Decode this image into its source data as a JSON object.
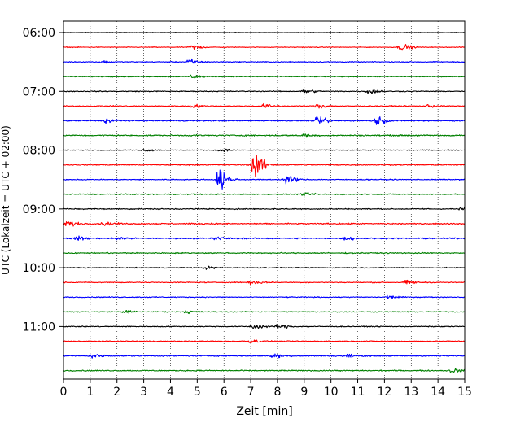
{
  "chart_data": {
    "type": "line",
    "title": "",
    "xlabel": "Zeit  [min]",
    "ylabel": "UTC (Lokalzeit = UTC + 02:00)",
    "xlim": [
      0,
      15
    ],
    "x_ticks": [
      "0",
      "1",
      "2",
      "3",
      "4",
      "5",
      "6",
      "7",
      "8",
      "9",
      "10",
      "11",
      "12",
      "13",
      "14",
      "15"
    ],
    "y_tick_labels": [
      "06:00",
      "07:00",
      "08:00",
      "09:00",
      "10:00",
      "11:00"
    ],
    "y_tick_trace_index": [
      0,
      4,
      8,
      12,
      16,
      20
    ],
    "grid": "vertical dotted",
    "trace_interval_min": 15,
    "colors": [
      "#000000",
      "#ff0000",
      "#0000ff",
      "#008000"
    ],
    "traces": [
      {
        "start": "06:00",
        "color": "#000000",
        "amplitude": 0.06,
        "events": []
      },
      {
        "start": "06:15",
        "color": "#ff0000",
        "amplitude": 0.08,
        "events": [
          {
            "t": 4.8,
            "a": 0.5
          },
          {
            "t": 12.6,
            "a": 0.7
          }
        ]
      },
      {
        "start": "06:30",
        "color": "#0000ff",
        "amplitude": 0.1,
        "events": [
          {
            "t": 1.3,
            "a": 0.35
          },
          {
            "t": 4.7,
            "a": 0.6
          }
        ]
      },
      {
        "start": "06:45",
        "color": "#008000",
        "amplitude": 0.1,
        "events": [
          {
            "t": 4.8,
            "a": 0.45
          }
        ]
      },
      {
        "start": "07:00",
        "color": "#000000",
        "amplitude": 0.1,
        "events": [
          {
            "t": 9.0,
            "a": 0.4
          },
          {
            "t": 11.4,
            "a": 0.55
          }
        ]
      },
      {
        "start": "07:15",
        "color": "#ff0000",
        "amplitude": 0.1,
        "events": [
          {
            "t": 4.8,
            "a": 0.35
          },
          {
            "t": 7.5,
            "a": 0.45
          },
          {
            "t": 9.5,
            "a": 0.55
          },
          {
            "t": 13.6,
            "a": 0.3
          }
        ]
      },
      {
        "start": "07:30",
        "color": "#0000ff",
        "amplitude": 0.12,
        "events": [
          {
            "t": 1.6,
            "a": 0.5
          },
          {
            "t": 9.5,
            "a": 0.9
          },
          {
            "t": 11.7,
            "a": 0.85
          }
        ]
      },
      {
        "start": "07:45",
        "color": "#008000",
        "amplitude": 0.14,
        "events": [
          {
            "t": 9.0,
            "a": 0.3
          }
        ]
      },
      {
        "start": "08:00",
        "color": "#000000",
        "amplitude": 0.08,
        "events": [
          {
            "t": 3.0,
            "a": 0.3
          },
          {
            "t": 5.8,
            "a": 0.35
          }
        ]
      },
      {
        "start": "08:15",
        "color": "#ff0000",
        "amplitude": 0.12,
        "events": [
          {
            "t": 7.1,
            "a": 2.7
          }
        ]
      },
      {
        "start": "08:30",
        "color": "#0000ff",
        "amplitude": 0.1,
        "events": [
          {
            "t": 5.8,
            "a": 2.3
          },
          {
            "t": 8.3,
            "a": 0.9
          }
        ]
      },
      {
        "start": "08:45",
        "color": "#008000",
        "amplitude": 0.12,
        "events": [
          {
            "t": 9.0,
            "a": 0.3
          }
        ]
      },
      {
        "start": "09:00",
        "color": "#000000",
        "amplitude": 0.12,
        "events": [
          {
            "t": 14.9,
            "a": 0.4
          }
        ]
      },
      {
        "start": "09:15",
        "color": "#ff0000",
        "amplitude": 0.14,
        "events": [
          {
            "t": 0.1,
            "a": 0.6
          },
          {
            "t": 1.5,
            "a": 0.35
          }
        ]
      },
      {
        "start": "09:30",
        "color": "#0000ff",
        "amplitude": 0.14,
        "events": [
          {
            "t": 0.5,
            "a": 0.4
          },
          {
            "t": 2.0,
            "a": 0.35
          },
          {
            "t": 5.6,
            "a": 0.4
          },
          {
            "t": 10.5,
            "a": 0.35
          }
        ]
      },
      {
        "start": "09:45",
        "color": "#008000",
        "amplitude": 0.12,
        "events": []
      },
      {
        "start": "10:00",
        "color": "#000000",
        "amplitude": 0.1,
        "events": [
          {
            "t": 5.3,
            "a": 0.35
          }
        ]
      },
      {
        "start": "10:15",
        "color": "#ff0000",
        "amplitude": 0.1,
        "events": [
          {
            "t": 7.0,
            "a": 0.45
          },
          {
            "t": 12.8,
            "a": 0.4
          }
        ]
      },
      {
        "start": "10:30",
        "color": "#0000ff",
        "amplitude": 0.1,
        "events": [
          {
            "t": 12.1,
            "a": 0.35
          }
        ]
      },
      {
        "start": "10:45",
        "color": "#008000",
        "amplitude": 0.1,
        "events": [
          {
            "t": 2.3,
            "a": 0.3
          },
          {
            "t": 4.6,
            "a": 0.3
          }
        ]
      },
      {
        "start": "11:00",
        "color": "#000000",
        "amplitude": 0.1,
        "events": [
          {
            "t": 7.1,
            "a": 0.6
          },
          {
            "t": 8.0,
            "a": 0.5
          }
        ]
      },
      {
        "start": "11:15",
        "color": "#ff0000",
        "amplitude": 0.1,
        "events": [
          {
            "t": 7.0,
            "a": 0.35
          }
        ]
      },
      {
        "start": "11:30",
        "color": "#0000ff",
        "amplitude": 0.12,
        "events": [
          {
            "t": 1.1,
            "a": 0.45
          },
          {
            "t": 7.8,
            "a": 0.45
          },
          {
            "t": 10.5,
            "a": 0.4
          }
        ]
      },
      {
        "start": "11:45",
        "color": "#008000",
        "amplitude": 0.12,
        "events": [
          {
            "t": 14.5,
            "a": 0.4
          }
        ]
      }
    ]
  }
}
